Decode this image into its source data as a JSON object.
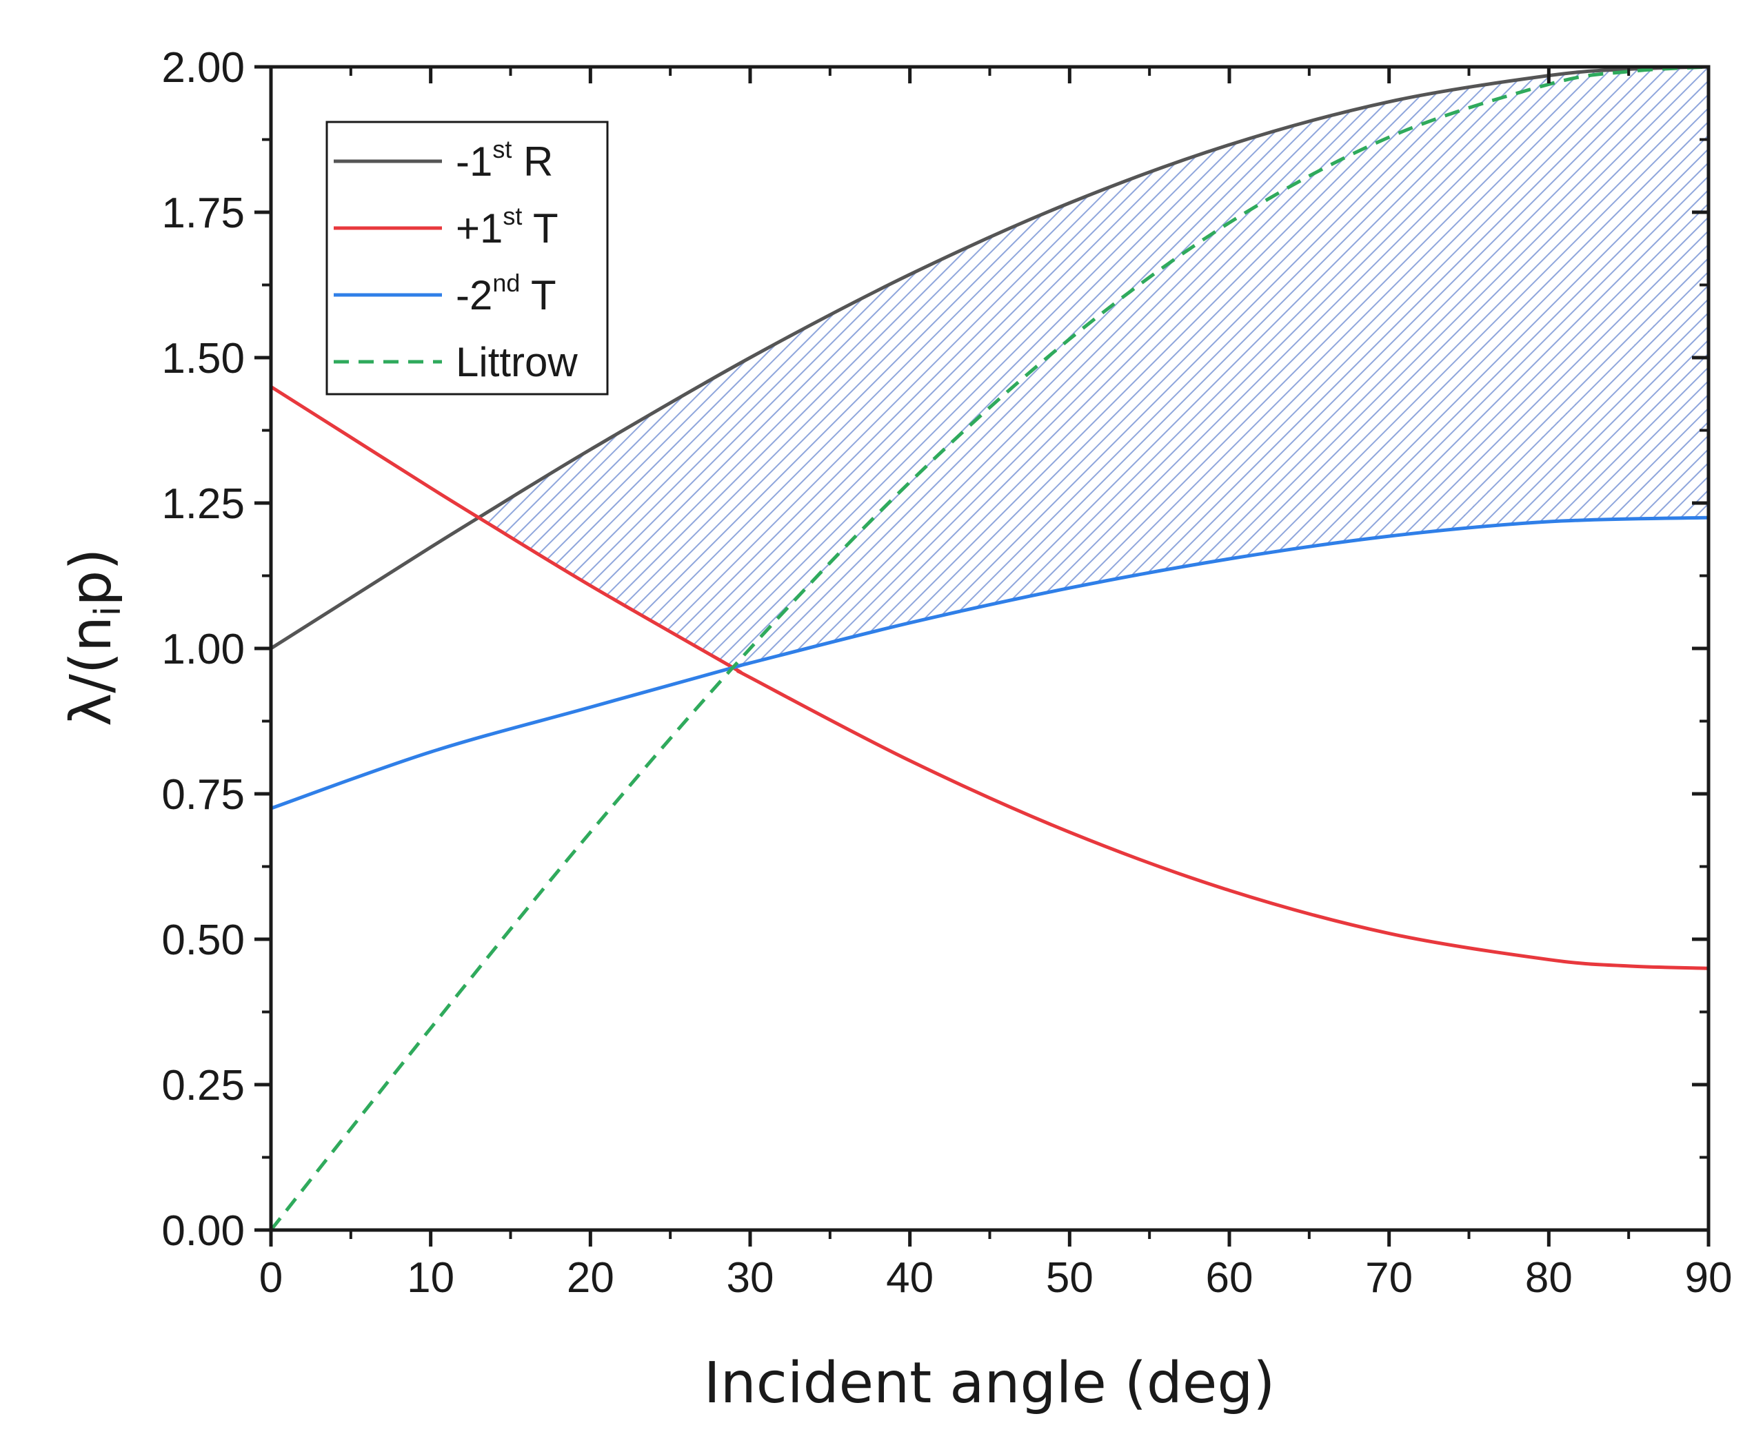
{
  "chart_data": {
    "type": "line",
    "xlabel": "Incident angle (deg)",
    "ylabel": {
      "lambda": "λ",
      "open": "/(n",
      "sub": "i",
      "close": "p)"
    },
    "xlim": [
      0,
      90
    ],
    "ylim": [
      0,
      2
    ],
    "x_ticks": [
      "0",
      "10",
      "20",
      "30",
      "40",
      "50",
      "60",
      "70",
      "80",
      "90"
    ],
    "y_ticks": [
      "0.00",
      "0.25",
      "0.50",
      "0.75",
      "1.00",
      "1.25",
      "1.50",
      "1.75",
      "2.00"
    ],
    "x_tick_values": [
      0,
      10,
      20,
      30,
      40,
      50,
      60,
      70,
      80,
      90
    ],
    "y_tick_values": [
      0,
      0.25,
      0.5,
      0.75,
      1.0,
      1.25,
      1.5,
      1.75,
      2.0
    ],
    "series": [
      {
        "name": "-1st R",
        "legend": {
          "pre": "-1",
          "sup": "st",
          "post": " R"
        },
        "color": "#555555",
        "dash": false,
        "x": [
          0,
          5,
          10,
          13.3,
          20,
          30,
          40,
          50,
          60,
          70,
          80,
          85,
          90
        ],
        "y": [
          1.0,
          1.087,
          1.174,
          1.23,
          1.342,
          1.5,
          1.643,
          1.766,
          1.866,
          1.94,
          1.985,
          1.996,
          2.0
        ]
      },
      {
        "name": "+1st T",
        "legend": {
          "pre": "+1",
          "sup": "st",
          "post": " T"
        },
        "color": "#e8383d",
        "dash": false,
        "x": [
          0,
          5,
          10,
          13.3,
          20,
          28.8,
          30,
          40,
          50,
          60,
          70,
          80,
          85,
          90
        ],
        "y": [
          1.45,
          1.363,
          1.276,
          1.22,
          1.108,
          0.969,
          0.95,
          0.807,
          0.684,
          0.584,
          0.51,
          0.465,
          0.454,
          0.45
        ]
      },
      {
        "name": "-2nd T",
        "legend": {
          "pre": "-2",
          "sup": "nd",
          "post": " T"
        },
        "color": "#2f7fe8",
        "dash": false,
        "x": [
          0,
          10,
          20,
          28.8,
          30,
          40,
          50,
          60,
          70,
          80,
          90
        ],
        "y": [
          0.725,
          0.822,
          0.899,
          0.966,
          0.975,
          1.044,
          1.104,
          1.154,
          1.193,
          1.218,
          1.225
        ]
      },
      {
        "name": "Littrow",
        "legend": {
          "pre": "Littrow",
          "sup": "",
          "post": ""
        },
        "color": "#2faa5c",
        "dash": true,
        "x": [
          0,
          10,
          20,
          30,
          40,
          50,
          60,
          70,
          80,
          85,
          90
        ],
        "y": [
          0.0,
          0.347,
          0.684,
          1.0,
          1.286,
          1.532,
          1.732,
          1.879,
          1.97,
          1.992,
          2.0
        ]
      }
    ],
    "shaded_region": {
      "description": "hatched band between -1st R (upper) and max(+1st T, -2nd T) (lower)",
      "x_start": 13.3,
      "x_end": 90,
      "color": "#7a9ad8"
    },
    "legend_position": "top-left"
  }
}
